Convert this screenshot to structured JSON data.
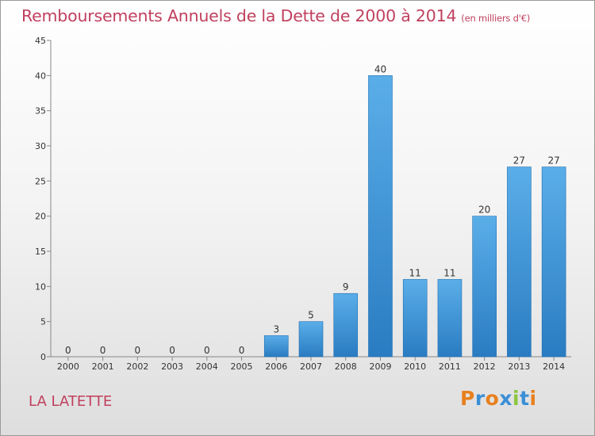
{
  "title": "Remboursements Annuels de la Dette de 2000 à 2014",
  "subtitle": "(en milliers d'€)",
  "place_name": "LA LATETTE",
  "logo_text": "Proxiti",
  "chart_data": {
    "type": "bar",
    "title": "Remboursements Annuels de la Dette de 2000 à 2014",
    "subtitle": "(en milliers d'€)",
    "categories": [
      "2000",
      "2001",
      "2002",
      "2003",
      "2004",
      "2005",
      "2006",
      "2007",
      "2008",
      "2009",
      "2010",
      "2011",
      "2012",
      "2013",
      "2014"
    ],
    "values": [
      0,
      0,
      0,
      0,
      0,
      0,
      3,
      5,
      9,
      40,
      11,
      11,
      20,
      27,
      27
    ],
    "ylim": [
      0,
      45
    ],
    "yticks": [
      0,
      5,
      10,
      15,
      20,
      25,
      30,
      35,
      40,
      45
    ],
    "grid": false,
    "bar_color": "#3b8fd4"
  }
}
